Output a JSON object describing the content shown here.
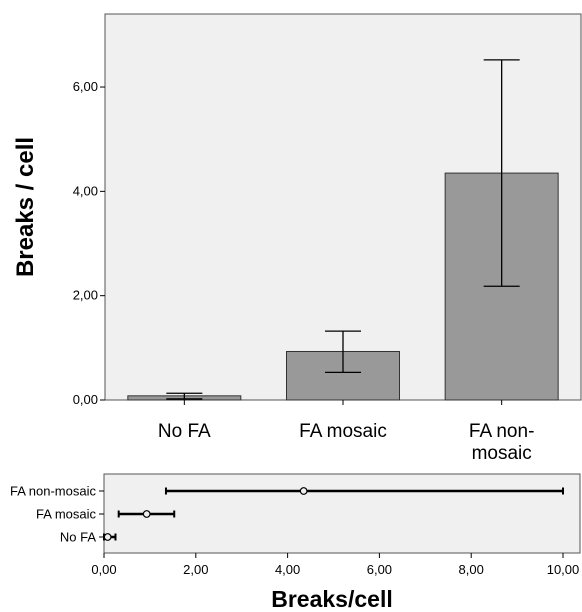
{
  "chart_data": [
    {
      "type": "bar",
      "categories": [
        "No FA",
        "FA mosaic",
        "FA non-\nmosaic"
      ],
      "values": [
        0.08,
        0.93,
        4.35
      ],
      "error_low": [
        0.02,
        0.53,
        2.18
      ],
      "error_high": [
        0.13,
        1.32,
        6.52
      ],
      "ylabel": "Breaks / cell",
      "xlabel": "",
      "ylim": [
        0,
        7.4
      ],
      "yticks": [
        0,
        2,
        4,
        6
      ],
      "ytick_labels": [
        "0,00",
        "2,00",
        "4,00",
        "6,00"
      ],
      "grid": false,
      "colors": {
        "bar": "#999999",
        "background": "#f0f0f0"
      }
    },
    {
      "type": "scatter",
      "orientation": "horizontal",
      "categories": [
        "FA non-mosaic",
        "FA mosaic",
        "No FA"
      ],
      "values": [
        4.35,
        0.93,
        0.08
      ],
      "error_low": [
        1.35,
        0.32,
        0.0
      ],
      "error_high": [
        10.0,
        1.53,
        0.25
      ],
      "xlabel": "Breaks/cell",
      "ylabel": "",
      "xlim": [
        0,
        10
      ],
      "xticks": [
        0,
        2,
        4,
        6,
        8,
        10
      ],
      "xtick_labels": [
        "0,00",
        "2,00",
        "4,00",
        "6,00",
        "8,00",
        "10,00"
      ],
      "grid": false,
      "colors": {
        "line": "#000000",
        "background": "#f0f0f0"
      }
    }
  ]
}
